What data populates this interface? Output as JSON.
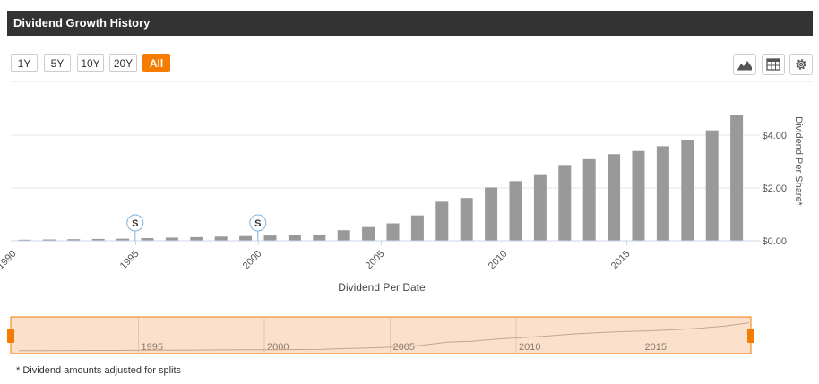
{
  "header": {
    "title": "Dividend Growth History"
  },
  "range_buttons": [
    {
      "label": "1Y",
      "active": false
    },
    {
      "label": "5Y",
      "active": false
    },
    {
      "label": "10Y",
      "active": false
    },
    {
      "label": "20Y",
      "active": false
    },
    {
      "label": "All",
      "active": true
    }
  ],
  "toolbar": {
    "icons": [
      "area-chart-icon",
      "table-icon",
      "gear-icon"
    ]
  },
  "colors": {
    "bar": "#999999",
    "accent": "#f57c00",
    "navigator_fill": "#fbe0cb",
    "navigator_line": "#c9a48a",
    "grid": "#e6e6e6"
  },
  "chart_data": {
    "type": "bar",
    "title": "",
    "xlabel": "Dividend Per Date",
    "ylabel": "Dividend Per Share*",
    "ylim": [
      0,
      4.8
    ],
    "y_ticks": [
      "$0.00",
      "$2.00",
      "$4.00"
    ],
    "y_tick_values": [
      0,
      2,
      4
    ],
    "x_ticks": [
      "1990",
      "1995",
      "2000",
      "2005",
      "2010",
      "2015"
    ],
    "x_tick_values": [
      1990,
      1995,
      2000,
      2005,
      2010,
      2015
    ],
    "x": [
      1990,
      1991,
      1992,
      1993,
      1994,
      1995,
      1996,
      1997,
      1998,
      1999,
      2000,
      2001,
      2002,
      2003,
      2004,
      2005,
      2006,
      2007,
      2008,
      2009,
      2010,
      2011,
      2012,
      2013,
      2014,
      2015,
      2016,
      2017,
      2018,
      2019
    ],
    "values": [
      0.04,
      0.05,
      0.06,
      0.07,
      0.08,
      0.1,
      0.12,
      0.14,
      0.16,
      0.18,
      0.2,
      0.22,
      0.24,
      0.4,
      0.52,
      0.66,
      0.96,
      1.48,
      1.62,
      2.02,
      2.26,
      2.52,
      2.87,
      3.09,
      3.28,
      3.4,
      3.58,
      3.83,
      4.18,
      4.75
    ],
    "split_markers": [
      {
        "year": 1994.5,
        "label": "S"
      },
      {
        "year": 1999.5,
        "label": "S"
      }
    ],
    "grid": true,
    "legend": "none",
    "navigator": {
      "x_ticks": [
        "1995",
        "2000",
        "2005",
        "2010",
        "2015"
      ]
    }
  },
  "footnote": "* Dividend amounts adjusted for splits"
}
